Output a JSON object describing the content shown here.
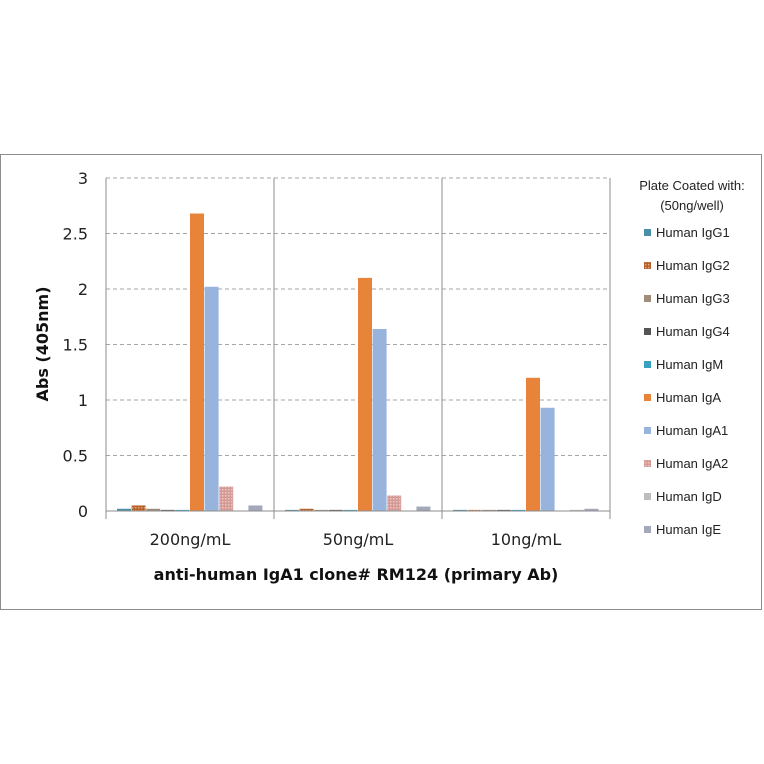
{
  "chart_data": {
    "type": "bar",
    "xlabel": "anti-human IgA1 clone# RM124 (primary Ab)",
    "ylabel": "Abs (405nm)",
    "categories": [
      "200ng/mL",
      "50ng/mL",
      "10ng/mL"
    ],
    "ylim": [
      0,
      3
    ],
    "yticks": [
      "0",
      "0.5",
      "1",
      "1.5",
      "2",
      "2.5",
      "3"
    ],
    "grid": "dashed horizontal",
    "legend_title": [
      "Plate Coated with:",
      "(50ng/well)"
    ],
    "legend_position": "right",
    "series": [
      {
        "name": "Human IgG1",
        "color": "#4a8fa8",
        "values": [
          0.02,
          0.01,
          0.01
        ]
      },
      {
        "name": "Human IgG2",
        "color": "#b5622a",
        "values": [
          0.05,
          0.02,
          0.01
        ]
      },
      {
        "name": "Human IgG3",
        "color": "#a08c7a",
        "values": [
          0.02,
          0.01,
          0.01
        ]
      },
      {
        "name": "Human IgG4",
        "color": "#555555",
        "values": [
          0.01,
          0.01,
          0.01
        ]
      },
      {
        "name": "Human IgM",
        "color": "#3aa0bf",
        "values": [
          0.01,
          0.01,
          0.01
        ]
      },
      {
        "name": "Human IgA",
        "color": "#e8843a",
        "values": [
          2.68,
          2.1,
          1.2
        ]
      },
      {
        "name": "Human IgA1",
        "color": "#98b4dc",
        "values": [
          2.02,
          1.64,
          0.93
        ]
      },
      {
        "name": "Human IgA2",
        "color": "#d49a96",
        "values": [
          0.22,
          0.14,
          0.0
        ]
      },
      {
        "name": "Human IgD",
        "color": "#bdbdbd",
        "values": [
          0.0,
          0.0,
          0.01
        ]
      },
      {
        "name": "Human IgE",
        "color": "#a3a9ba",
        "values": [
          0.05,
          0.04,
          0.02
        ]
      }
    ]
  }
}
